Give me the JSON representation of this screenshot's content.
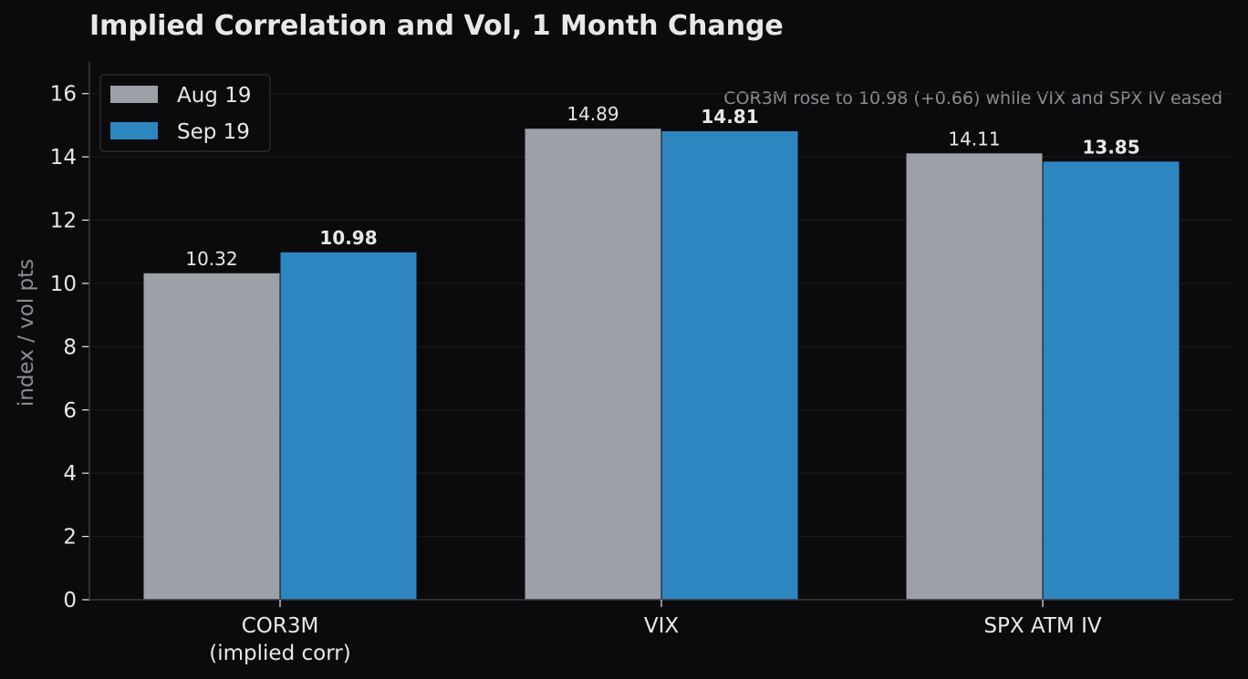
{
  "colors": {
    "background": "#0b0b0d",
    "text": "#e8e8ea",
    "muted_text": "#8c8c92",
    "axis": "#3a3a3e",
    "grid": "#1c1c20",
    "aug_series": "#9ca0a8",
    "sep_series": "#2e86c1"
  },
  "chart_data": {
    "type": "bar",
    "title": "Implied Correlation and Vol, 1 Month Change",
    "ylabel": "index / vol pts",
    "xlabel": "",
    "categories": [
      "COR3M\n(implied corr)",
      "VIX",
      "SPX ATM IV"
    ],
    "series": [
      {
        "name": "Aug 19",
        "values": [
          10.32,
          14.89,
          14.11
        ],
        "labels": [
          "10.32",
          "14.89",
          "14.11"
        ]
      },
      {
        "name": "Sep 19",
        "values": [
          10.98,
          14.81,
          13.85
        ],
        "labels": [
          "10.98",
          "14.81",
          "13.85"
        ]
      }
    ],
    "ylim": [
      0,
      17
    ],
    "yticks": [
      0,
      2,
      4,
      6,
      8,
      10,
      12,
      14,
      16
    ],
    "grid": true,
    "legend_position": "top-left",
    "annotation": "COR3M rose to 10.98 (+0.66) while VIX and SPX IV eased"
  }
}
